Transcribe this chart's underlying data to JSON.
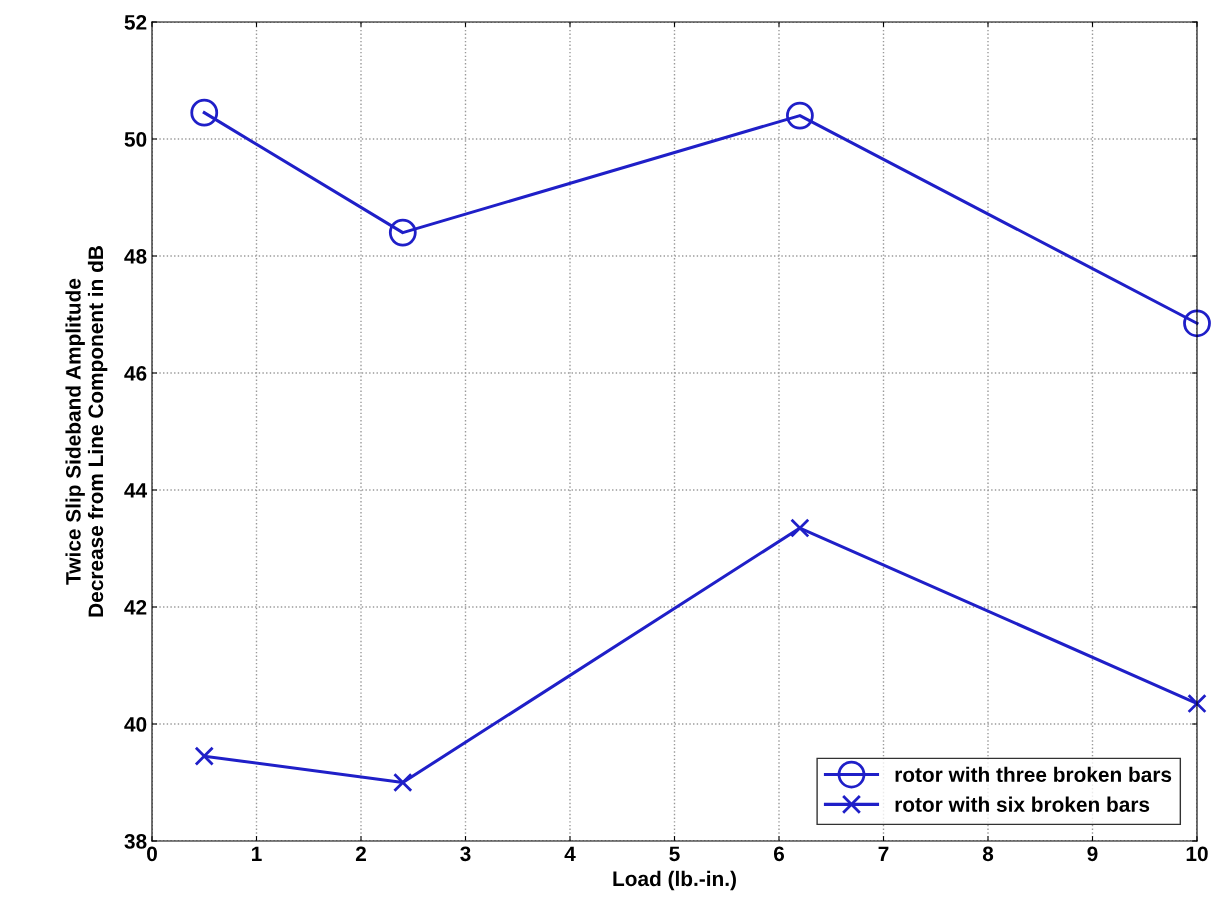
{
  "chart_data": {
    "type": "line",
    "xlabel": "Load (lb.-in.)",
    "ylabel": "Twice Slip Sideband Amplitude\nDecrease from Line Component in dB",
    "series": [
      {
        "name": "rotor with three broken bars",
        "color": "#1f1fc8",
        "marker": "circle",
        "x": [
          0.5,
          2.4,
          6.2,
          10
        ],
        "values": [
          50.45,
          48.4,
          50.4,
          46.85
        ]
      },
      {
        "name": "rotor with six broken bars",
        "color": "#1f1fc8",
        "marker": "cross",
        "x": [
          0.5,
          2.4,
          6.2,
          10
        ],
        "values": [
          39.45,
          39.0,
          43.35,
          40.35
        ]
      }
    ],
    "xlim": [
      0,
      10
    ],
    "xticks": [
      0,
      1,
      2,
      3,
      4,
      5,
      6,
      7,
      8,
      9,
      10
    ],
    "ylim": [
      38,
      52
    ],
    "yticks": [
      38,
      40,
      42,
      44,
      46,
      48,
      50,
      52
    ],
    "grid": true,
    "legend": "bottom right",
    "line_style": "solid"
  }
}
